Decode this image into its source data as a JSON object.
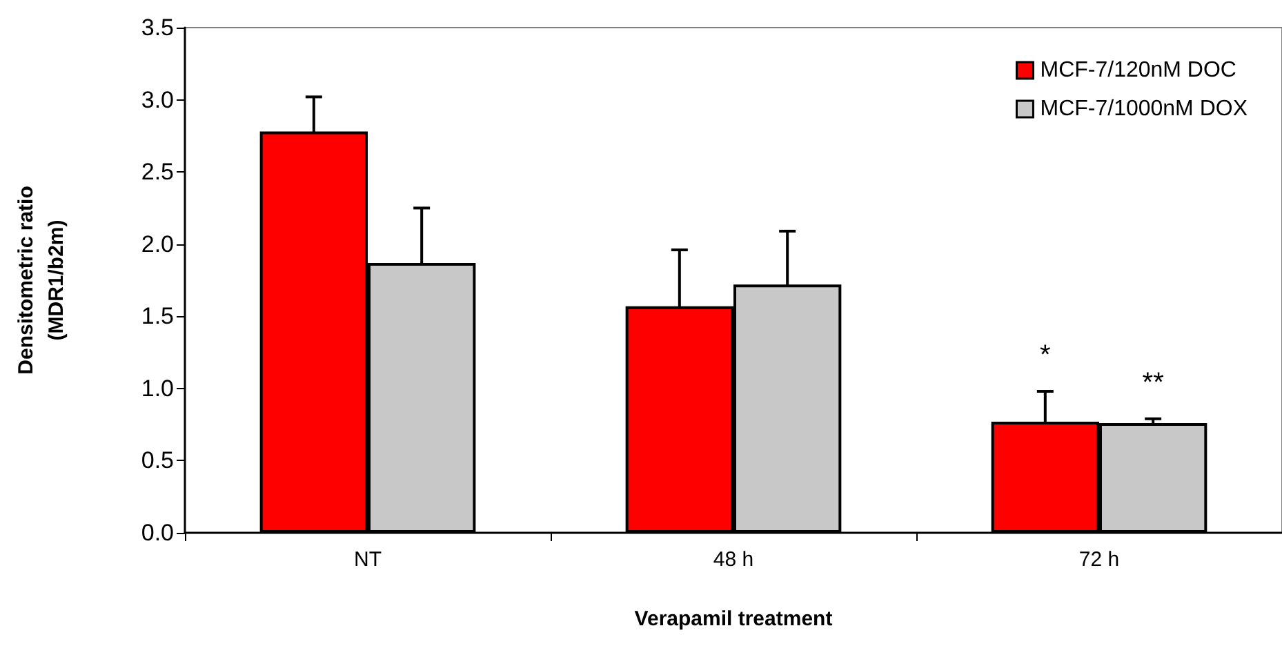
{
  "chart_data": {
    "type": "bar",
    "xlabel": "Verapamil treatment",
    "ylabel": "Densitometric ratio\n(MDR1/b2m)",
    "categories": [
      "NT",
      "48 h",
      "72 h"
    ],
    "series": [
      {
        "name": "MCF-7/120nM DOC",
        "color": "#ff0000",
        "values": [
          2.78,
          1.57,
          0.77
        ],
        "errors": [
          0.24,
          0.39,
          0.21
        ]
      },
      {
        "name": "MCF-7/1000nM DOX",
        "color": "#c8c8c8",
        "values": [
          1.87,
          1.72,
          0.76
        ],
        "errors": [
          0.38,
          0.37,
          0.03
        ]
      }
    ],
    "annotations": [
      "*",
      "**"
    ],
    "ylim": [
      0,
      3.5
    ],
    "yticks": [
      {
        "value": 0,
        "label": "0.0"
      },
      {
        "value": 0.5,
        "label": "0.5"
      },
      {
        "value": 1,
        "label": "1.0"
      },
      {
        "value": 1.5,
        "label": "1.5"
      },
      {
        "value": 2,
        "label": "2.0"
      },
      {
        "value": 2.5,
        "label": "2.5"
      },
      {
        "value": 3,
        "label": "3.0"
      },
      {
        "value": 3.5,
        "label": "3.5"
      }
    ],
    "grid": false,
    "legend": "top right"
  }
}
